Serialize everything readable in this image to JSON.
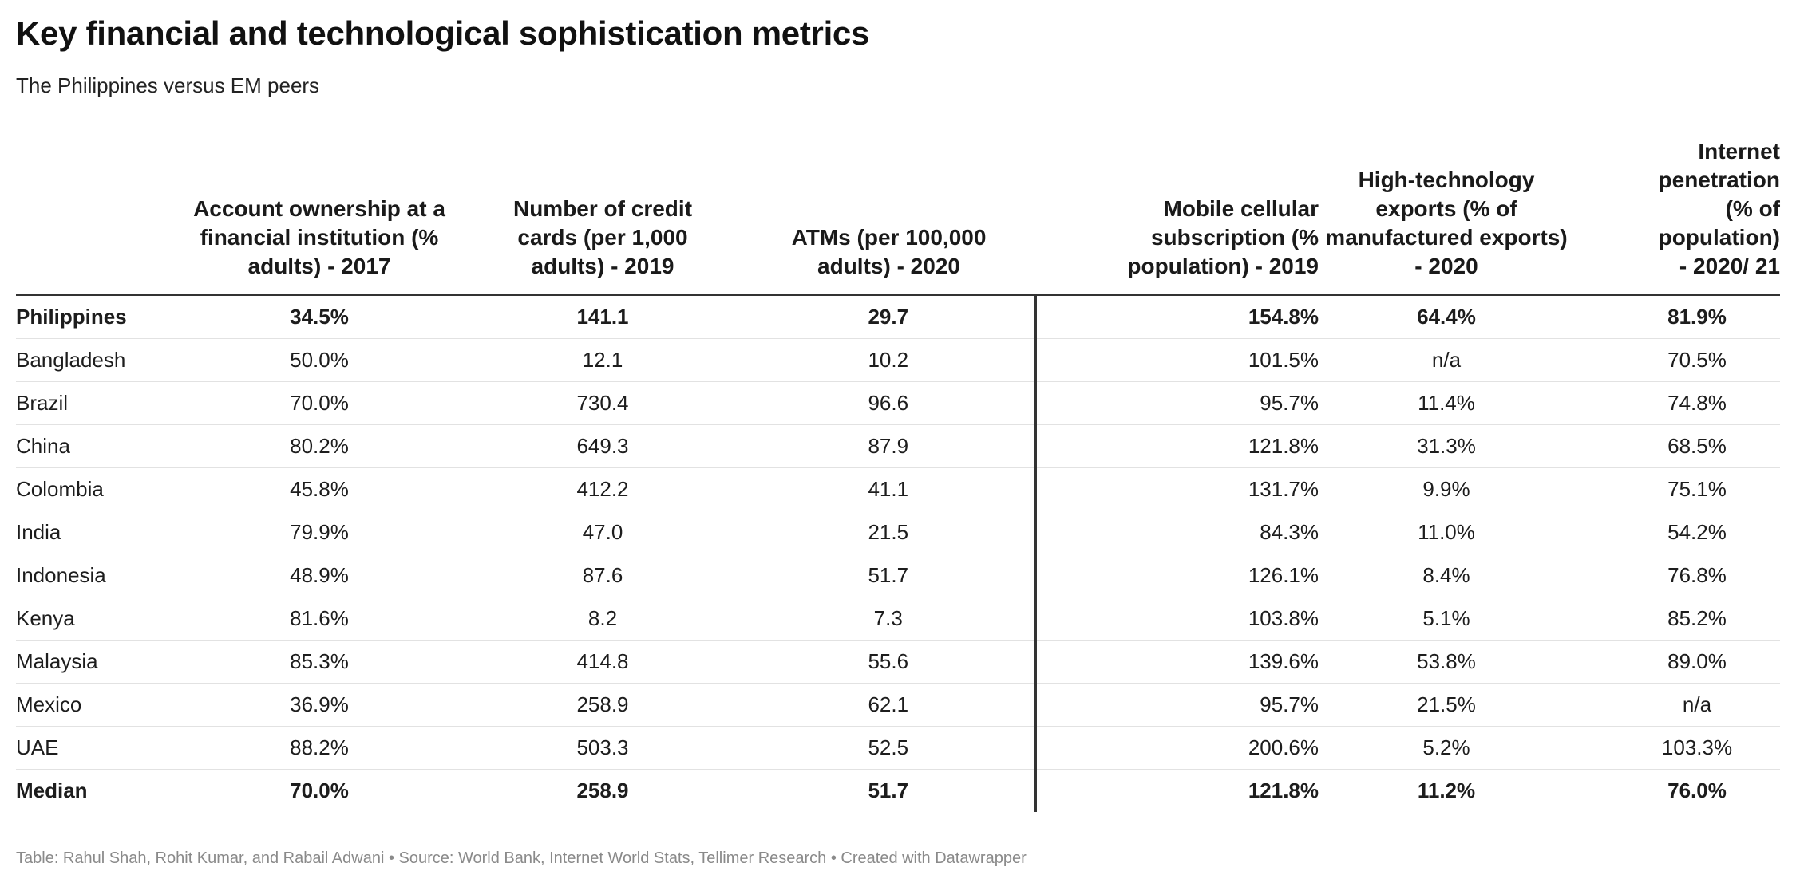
{
  "title": "Key financial and technological sophistication metrics",
  "subtitle": "The Philippines versus EM peers",
  "columns": [
    "",
    "Account ownership at a financial institution (% adults) - 2017",
    "Number of credit cards (per 1,000 adults) - 2019",
    "ATMs (per 100,000 adults) - 2020",
    "Mobile cellular subscription (% population) - 2019",
    "High-technology exports (% of manufactured exports) - 2020",
    "Internet penetration (% of population) - 2020/ 21"
  ],
  "rows": [
    [
      "Philippines",
      "34.5%",
      "141.1",
      "29.7",
      "154.8%",
      "64.4%",
      "81.9%"
    ],
    [
      "Bangladesh",
      "50.0%",
      "12.1",
      "10.2",
      "101.5%",
      "n/a",
      "70.5%"
    ],
    [
      "Brazil",
      "70.0%",
      "730.4",
      "96.6",
      "95.7%",
      "11.4%",
      "74.8%"
    ],
    [
      "China",
      "80.2%",
      "649.3",
      "87.9",
      "121.8%",
      "31.3%",
      "68.5%"
    ],
    [
      "Colombia",
      "45.8%",
      "412.2",
      "41.1",
      "131.7%",
      "9.9%",
      "75.1%"
    ],
    [
      "India",
      "79.9%",
      "47.0",
      "21.5",
      "84.3%",
      "11.0%",
      "54.2%"
    ],
    [
      "Indonesia",
      "48.9%",
      "87.6",
      "51.7",
      "126.1%",
      "8.4%",
      "76.8%"
    ],
    [
      "Kenya",
      "81.6%",
      "8.2",
      "7.3",
      "103.8%",
      "5.1%",
      "85.2%"
    ],
    [
      "Malaysia",
      "85.3%",
      "414.8",
      "55.6",
      "139.6%",
      "53.8%",
      "89.0%"
    ],
    [
      "Mexico",
      "36.9%",
      "258.9",
      "62.1",
      "95.7%",
      "21.5%",
      "n/a"
    ],
    [
      "UAE",
      "88.2%",
      "503.3",
      "52.5",
      "200.6%",
      "5.2%",
      "103.3%"
    ],
    [
      "Median",
      "70.0%",
      "258.9",
      "51.7",
      "121.8%",
      "11.2%",
      "76.0%"
    ]
  ],
  "footer": "Table: Rahul Shah, Rohit Kumar, and Rabail Adwani • Source: World Bank, Internet World Stats, Tellimer Research • Created with Datawrapper"
}
